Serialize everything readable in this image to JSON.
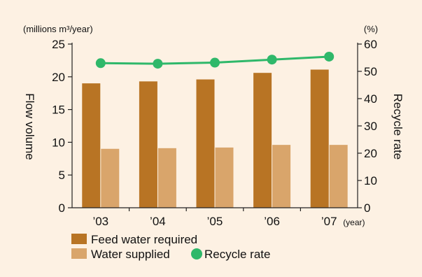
{
  "chart_data": {
    "type": "bar",
    "categories": [
      "’03",
      "’04",
      "’05",
      "’06",
      "’07"
    ],
    "x_unit": "(year)",
    "left_axis": {
      "label": "Flow volume",
      "unit": "(millions m³/year)",
      "range": [
        0,
        25
      ],
      "ticks": [
        0,
        5,
        10,
        15,
        20,
        25
      ]
    },
    "right_axis": {
      "label": "Recycle rate",
      "unit": "(%)",
      "range": [
        0,
        60
      ],
      "ticks": [
        0,
        10,
        20,
        30,
        40,
        50,
        60
      ]
    },
    "series": [
      {
        "name": "Feed water required",
        "type": "bar",
        "axis": "left",
        "color": "#b87424",
        "values": [
          19.0,
          19.3,
          19.6,
          20.6,
          21.1
        ]
      },
      {
        "name": "Water supplied",
        "type": "bar",
        "axis": "left",
        "color": "#d9a56b",
        "values": [
          9.0,
          9.1,
          9.2,
          9.6,
          9.6
        ]
      },
      {
        "name": "Recycle rate",
        "type": "line",
        "axis": "right",
        "color": "#2fb86a",
        "values": [
          53.0,
          52.8,
          53.2,
          54.3,
          55.4
        ]
      }
    ],
    "grid": false,
    "legend_position": "bottom-left"
  }
}
